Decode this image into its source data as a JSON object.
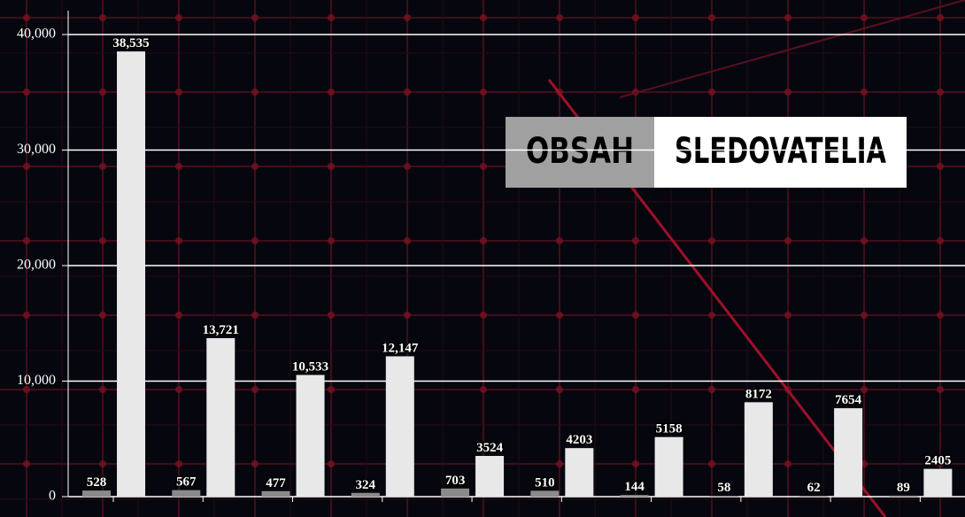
{
  "chart_data": {
    "type": "bar",
    "categories": [
      null,
      null,
      null,
      null,
      null,
      null,
      null,
      null,
      null,
      null
    ],
    "series": [
      {
        "name": "OBSAH",
        "color": "#8a8a8a",
        "values": [
          528,
          567,
          477,
          324,
          703,
          510,
          144,
          58,
          62,
          89
        ]
      },
      {
        "name": "SLEDOVATELIA",
        "color": "#e8e8e8",
        "values": [
          38535,
          13721,
          10533,
          12147,
          3524,
          4203,
          5158,
          8172,
          7654,
          2405
        ],
        "value_labels": [
          "38,535",
          "13,721",
          "10,533",
          "12,147",
          "3524",
          "4203",
          "5158",
          "8172",
          "7654",
          "2405"
        ]
      }
    ],
    "ylim": [
      0,
      42000
    ],
    "yticks": [
      0,
      {
        "value": 10000,
        "label": "10,000"
      },
      {
        "value": 20000,
        "label": "20,000"
      },
      {
        "value": 30000,
        "label": "30,000"
      },
      {
        "value": 40000,
        "label": "40,000"
      }
    ],
    "grid": true
  }
}
